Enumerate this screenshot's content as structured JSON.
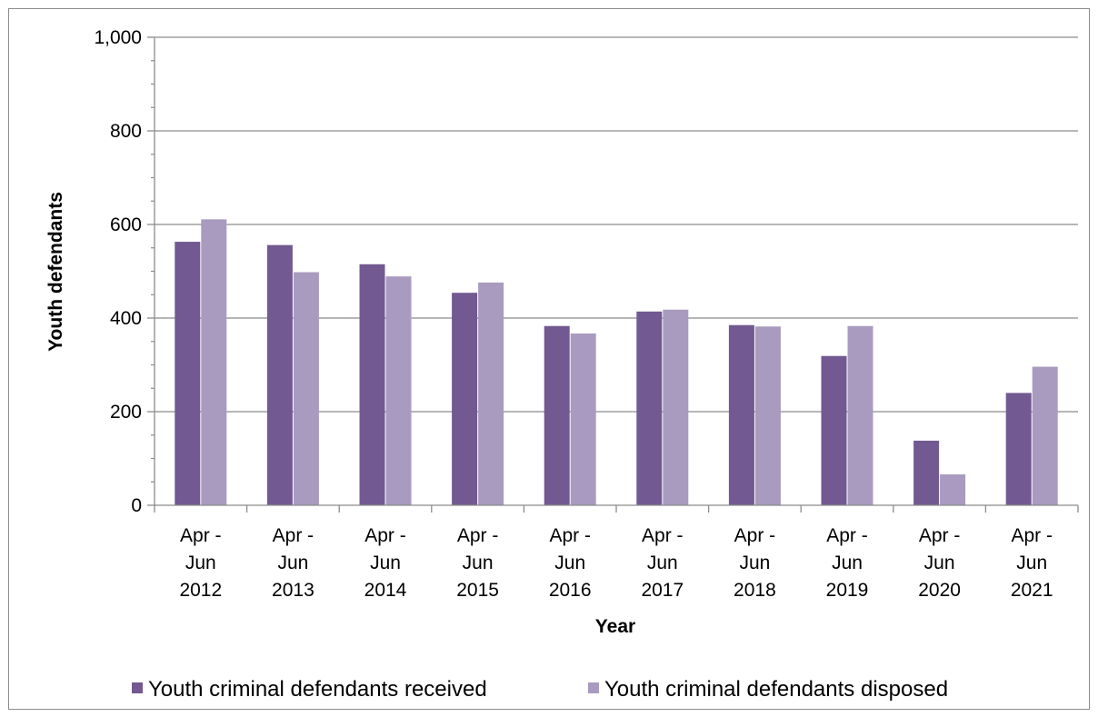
{
  "chart_data": {
    "type": "bar",
    "title": "",
    "xlabel": "Year",
    "ylabel": "Youth defendants",
    "ylim": [
      0,
      1000
    ],
    "yticks": [
      0,
      200,
      400,
      600,
      800,
      1000
    ],
    "ytick_labels": [
      "0",
      "200",
      "400",
      "600",
      "800",
      "1,000"
    ],
    "grid": true,
    "legend_position": "bottom",
    "categories": [
      [
        "Apr -",
        "Jun",
        "2012"
      ],
      [
        "Apr -",
        "Jun",
        "2013"
      ],
      [
        "Apr -",
        "Jun",
        "2014"
      ],
      [
        "Apr -",
        "Jun",
        "2015"
      ],
      [
        "Apr -",
        "Jun",
        "2016"
      ],
      [
        "Apr -",
        "Jun",
        "2017"
      ],
      [
        "Apr -",
        "Jun",
        "2018"
      ],
      [
        "Apr -",
        "Jun",
        "2019"
      ],
      [
        "Apr -",
        "Jun",
        "2020"
      ],
      [
        "Apr -",
        "Jun",
        "2021"
      ]
    ],
    "series": [
      {
        "name": "Youth criminal defendants received",
        "color": "#725991",
        "values": [
          563,
          556,
          515,
          454,
          383,
          414,
          385,
          319,
          138,
          240
        ]
      },
      {
        "name": "Youth criminal defendants disposed",
        "color": "#a99bbf",
        "values": [
          611,
          498,
          489,
          476,
          367,
          418,
          382,
          383,
          66,
          296
        ]
      }
    ]
  }
}
